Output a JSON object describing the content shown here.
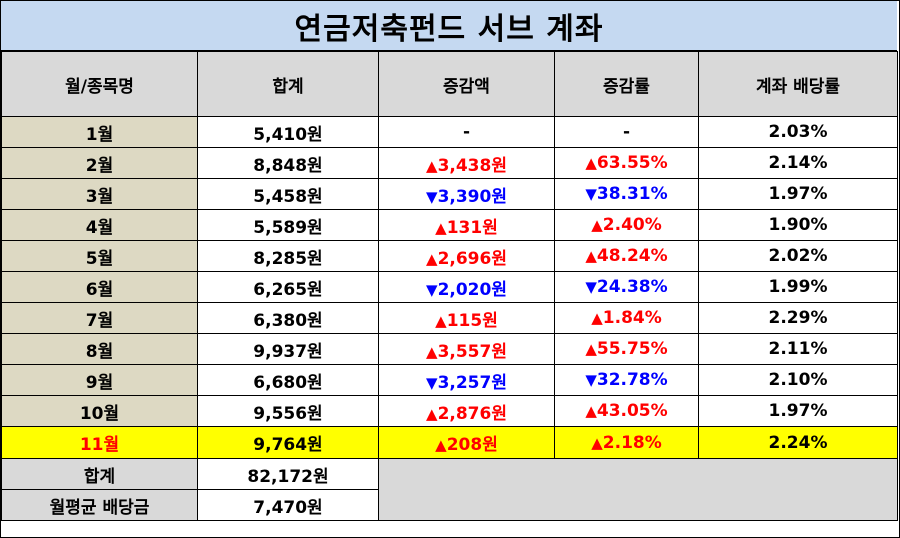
{
  "title": "연금저축펀드 서브 계좌",
  "headers": [
    "월/종목명",
    "합계",
    "증감액",
    "증감률",
    "계좌 배당률"
  ],
  "rows": [
    {
      "month": "1월",
      "total": "5,410원",
      "dir": "none",
      "change": "-",
      "rate": "-",
      "yield": "2.03%"
    },
    {
      "month": "2월",
      "total": "8,848원",
      "dir": "up",
      "change": "3,438원",
      "rate": "63.55%",
      "yield": "2.14%"
    },
    {
      "month": "3월",
      "total": "5,458원",
      "dir": "down",
      "change": "3,390원",
      "rate": "38.31%",
      "yield": "1.97%"
    },
    {
      "month": "4월",
      "total": "5,589원",
      "dir": "up",
      "change": "131원",
      "rate": "2.40%",
      "yield": "1.90%"
    },
    {
      "month": "5월",
      "total": "8,285원",
      "dir": "up",
      "change": "2,696원",
      "rate": "48.24%",
      "yield": "2.02%"
    },
    {
      "month": "6월",
      "total": "6,265원",
      "dir": "down",
      "change": "2,020원",
      "rate": "24.38%",
      "yield": "1.99%"
    },
    {
      "month": "7월",
      "total": "6,380원",
      "dir": "up",
      "change": "115원",
      "rate": "1.84%",
      "yield": "2.29%"
    },
    {
      "month": "8월",
      "total": "9,937원",
      "dir": "up",
      "change": "3,557원",
      "rate": "55.75%",
      "yield": "2.11%"
    },
    {
      "month": "9월",
      "total": "6,680원",
      "dir": "down",
      "change": "3,257원",
      "rate": "32.78%",
      "yield": "2.10%"
    },
    {
      "month": "10월",
      "total": "9,556원",
      "dir": "up",
      "change": "2,876원",
      "rate": "43.05%",
      "yield": "1.97%"
    },
    {
      "month": "11월",
      "total": "9,764원",
      "dir": "up",
      "change": "208원",
      "rate": "2.18%",
      "yield": "2.24%",
      "highlight": true
    }
  ],
  "summary": [
    {
      "label": "합계",
      "value": "82,172원"
    },
    {
      "label": "월평균 배당금",
      "value": "7,470원"
    }
  ],
  "symbols": {
    "up": "▲",
    "down": "▼"
  },
  "colors": {
    "title_bg": "#c5d9f1",
    "header_bg": "#d9d9d9",
    "row_bg": "#ddd9c3",
    "highlight_bg": "#ffff00",
    "up": "#ff0000",
    "down": "#0000ff"
  }
}
